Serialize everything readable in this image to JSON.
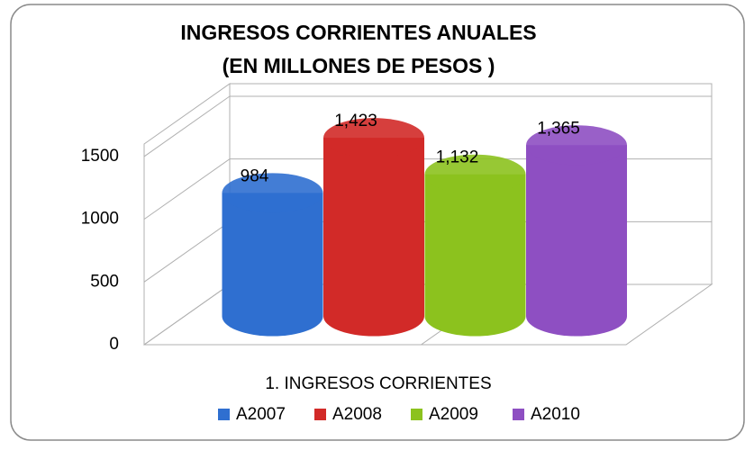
{
  "chart_data": {
    "type": "bar3d",
    "title": "INGRESOS CORRIENTES ANUALES",
    "subtitle": "(EN MILLONES DE PESOS )",
    "categories": [
      "1.  INGRESOS CORRIENTES"
    ],
    "series": [
      {
        "name": "A2007",
        "color": "#2f6fd0",
        "values": [
          984
        ],
        "value_labels": [
          "984"
        ]
      },
      {
        "name": "A2008",
        "color": "#d22a28",
        "values": [
          1423
        ],
        "value_labels": [
          "1,423"
        ]
      },
      {
        "name": "A2009",
        "color": "#8cc21e",
        "values": [
          1132
        ],
        "value_labels": [
          "1,132"
        ]
      },
      {
        "name": "A2010",
        "color": "#8e4fc2",
        "values": [
          1365
        ],
        "value_labels": [
          "1,365"
        ]
      }
    ],
    "ylim": [
      0,
      1600
    ],
    "yticks": [
      0,
      500,
      1000,
      1500
    ],
    "grid": true,
    "legend": "bottom"
  }
}
